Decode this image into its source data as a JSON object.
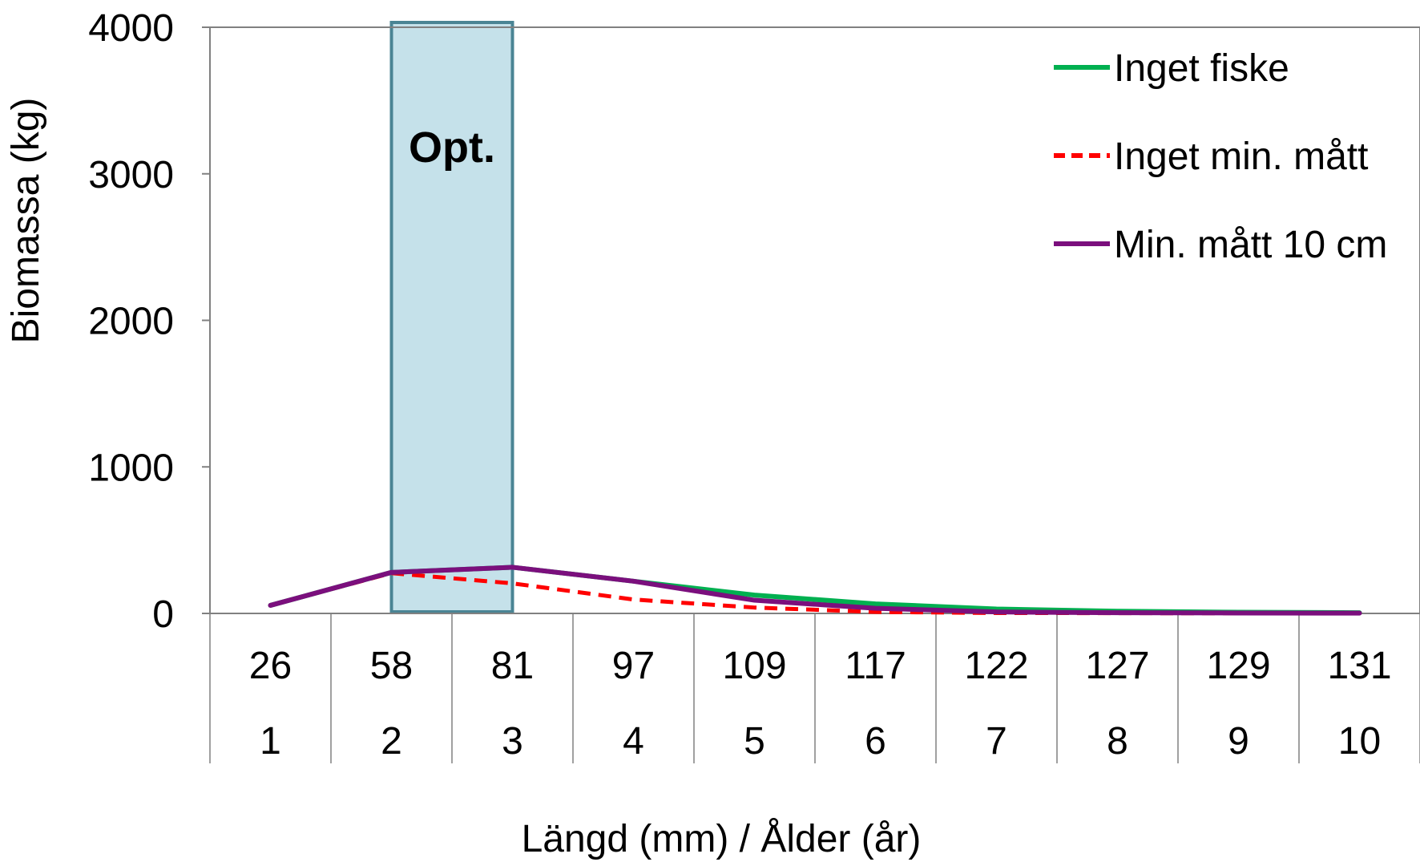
{
  "chart_data": {
    "type": "line",
    "title": "",
    "ylabel": "Biomassa (kg)",
    "xlabel": "Längd (mm) / Ålder (år)",
    "ylim": [
      0,
      4000
    ],
    "yticks": [
      0,
      1000,
      2000,
      3000,
      4000
    ],
    "categories_length": [
      "26",
      "58",
      "81",
      "97",
      "109",
      "117",
      "122",
      "127",
      "129",
      "131"
    ],
    "categories_age": [
      "1",
      "2",
      "3",
      "4",
      "5",
      "6",
      "7",
      "8",
      "9",
      "10"
    ],
    "highlight": {
      "label": "Opt.",
      "category_index": 1,
      "color": "#c5e1ea",
      "border": "#4a8494"
    },
    "legend_position": "top-right",
    "series": [
      {
        "name": "Inget fiske",
        "color": "#00b050",
        "dash": "solid",
        "values": [
          55,
          280,
          315,
          220,
          125,
          65,
          30,
          15,
          8,
          5
        ]
      },
      {
        "name": "Inget min. mått",
        "color": "#ff0000",
        "dash": "dashed",
        "values": [
          55,
          275,
          205,
          95,
          40,
          10,
          3,
          2,
          1,
          1
        ]
      },
      {
        "name": "Min. mått 10 cm",
        "color": "#7b0f7d",
        "dash": "solid",
        "values": [
          55,
          280,
          315,
          220,
          90,
          35,
          10,
          5,
          3,
          2
        ]
      }
    ]
  }
}
